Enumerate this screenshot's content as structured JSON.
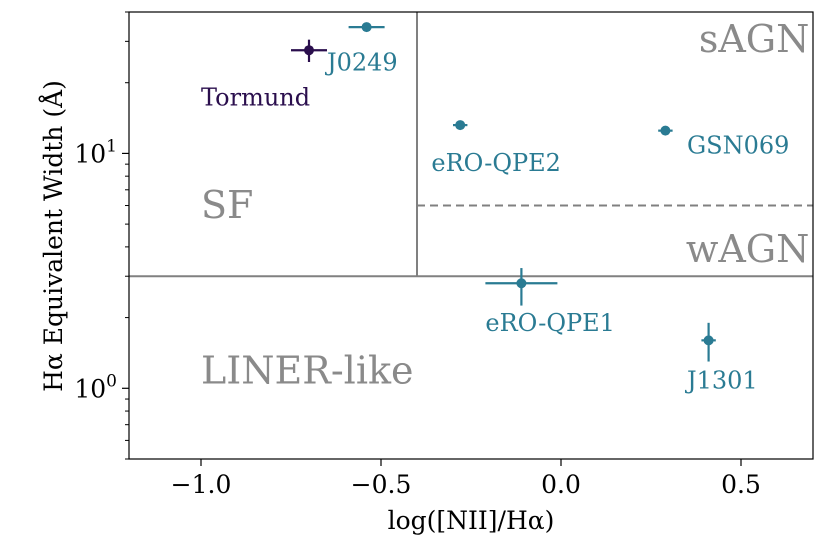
{
  "chart_data": {
    "type": "scatter",
    "title": "",
    "xlabel": "log([NII]/Hα)",
    "ylabel": "Hα Equivalent Width (Å)",
    "xlim": [
      -1.2,
      0.7
    ],
    "ylim": [
      0.5,
      40
    ],
    "yscale": "log",
    "grid": false,
    "legend": "none",
    "x_ticks": [
      {
        "value": -1.0,
        "label": "−1.0"
      },
      {
        "value": -0.5,
        "label": "−0.5"
      },
      {
        "value": 0.0,
        "label": "0.0"
      },
      {
        "value": 0.5,
        "label": "0.5"
      }
    ],
    "y_ticks": [
      {
        "value": 1,
        "base": "10",
        "exp": "0"
      },
      {
        "value": 10,
        "base": "10",
        "exp": "1"
      }
    ],
    "boundaries": [
      {
        "kind": "vertical",
        "x": -0.4,
        "y_from": 3,
        "y_to": 40,
        "style": "solid"
      },
      {
        "kind": "horizontal",
        "y": 3,
        "x_from": -1.2,
        "x_to": 0.7,
        "style": "solid"
      },
      {
        "kind": "horizontal",
        "y": 6,
        "x_from": -0.4,
        "x_to": 0.7,
        "style": "dashed"
      }
    ],
    "regions": [
      {
        "label": "sAGN",
        "x": 0.69,
        "y": 27,
        "anchor": "end",
        "size": 38
      },
      {
        "label": "wAGN",
        "x": 0.69,
        "y": 3.45,
        "anchor": "end",
        "size": 38
      },
      {
        "label": "SF",
        "x": -1.0,
        "y": 5.3,
        "anchor": "start",
        "size": 38
      },
      {
        "label": "LINER-like",
        "x": -1.0,
        "y": 1.05,
        "anchor": "start",
        "size": 38
      }
    ],
    "points": [
      {
        "name": "Tormund",
        "x": -0.7,
        "y": 27.5,
        "xerr": 0.05,
        "yerr_low": 3.0,
        "yerr_high": 3.0,
        "color": "#2a0e4d",
        "label_x": -1.0,
        "label_y": 16
      },
      {
        "name": "J0249",
        "x": -0.54,
        "y": 34.5,
        "xerr": 0.05,
        "yerr_low": 0.8,
        "yerr_high": 0.8,
        "color": "#2a7b93",
        "label_x": -0.65,
        "label_y": 22.5
      },
      {
        "name": "eRO-QPE2",
        "x": -0.28,
        "y": 13.2,
        "xerr": 0.02,
        "yerr_low": 0.4,
        "yerr_high": 0.4,
        "color": "#2a7b93",
        "label_x": -0.36,
        "label_y": 8.4
      },
      {
        "name": "GSN069",
        "x": 0.29,
        "y": 12.5,
        "xerr": 0.02,
        "yerr_low": 0.4,
        "yerr_high": 0.4,
        "color": "#2a7b93",
        "label_x": 0.35,
        "label_y": 10.0
      },
      {
        "name": "eRO-QPE1",
        "x": -0.11,
        "y": 2.8,
        "xerr": 0.1,
        "yerr_low": 0.55,
        "yerr_high": 0.45,
        "color": "#2a7b93",
        "label_x": -0.21,
        "label_y": 1.75
      },
      {
        "name": "J1301",
        "x": 0.41,
        "y": 1.6,
        "xerr": 0.02,
        "yerr_low": 0.3,
        "yerr_high": 0.3,
        "color": "#2a7b93",
        "label_x": 0.35,
        "label_y": 1.0
      }
    ],
    "colors": {
      "axis": "#000000",
      "boundary": "#808080",
      "region_text": "#8a8a8a"
    }
  }
}
